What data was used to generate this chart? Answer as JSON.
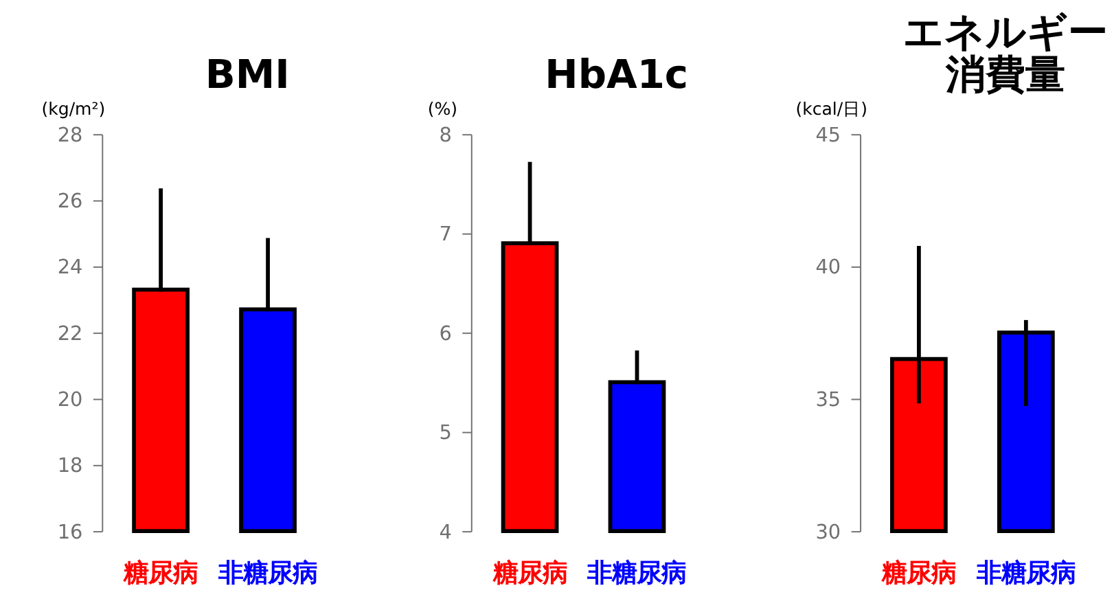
{
  "chart_data": [
    {
      "type": "bar",
      "title": "BMI",
      "ylabel": "(kg/m²)",
      "categories": [
        "糖尿病",
        "非糖尿病"
      ],
      "values": [
        23.3,
        22.7
      ],
      "colors": [
        "#ff0000",
        "#0000ff"
      ],
      "errors": [
        [
          23.3,
          26.3
        ],
        [
          22.7,
          24.8
        ]
      ],
      "ylim": [
        16,
        28
      ],
      "yticks": [
        16,
        18,
        20,
        22,
        24,
        26,
        28
      ],
      "grid": false,
      "legend": false
    },
    {
      "type": "bar",
      "title": "HbA1c",
      "ylabel": "(%)",
      "categories": [
        "糖尿病",
        "非糖尿病"
      ],
      "values": [
        6.9,
        5.5
      ],
      "colors": [
        "#ff0000",
        "#0000ff"
      ],
      "errors": [
        [
          6.9,
          7.7
        ],
        [
          5.5,
          5.8
        ]
      ],
      "ylim": [
        4,
        8
      ],
      "yticks": [
        4,
        5,
        6,
        7,
        8
      ],
      "grid": false,
      "legend": false
    },
    {
      "type": "bar",
      "title": "エネルギー消費量",
      "ylabel": "(kcal/日)",
      "categories": [
        "糖尿病",
        "非糖尿病"
      ],
      "values": [
        36.5,
        37.5
      ],
      "colors": [
        "#ff0000",
        "#0000ff"
      ],
      "errors": [
        [
          34.9,
          40.7
        ],
        [
          34.8,
          37.9
        ]
      ],
      "ylim": [
        30,
        45
      ],
      "yticks": [
        30,
        35,
        40,
        45
      ],
      "grid": false,
      "legend": false
    }
  ]
}
